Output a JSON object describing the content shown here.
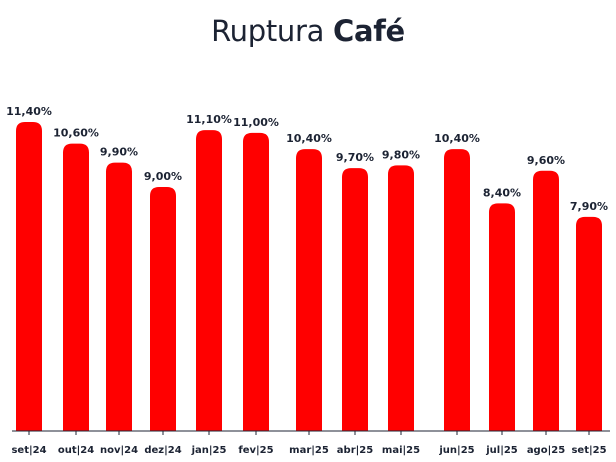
{
  "title": {
    "prefix": "Ruptura",
    "emphasis": "Café"
  },
  "colors": {
    "bar": "#ff0000",
    "text": "#1c2333",
    "axis": "#1c2333"
  },
  "chart_data": {
    "type": "bar",
    "title": "Ruptura Café",
    "xlabel": "",
    "ylabel": "",
    "ylim": [
      0,
      11.4
    ],
    "grid": false,
    "categories": [
      "set|24",
      "out|24",
      "nov|24",
      "dez|24",
      "jan|25",
      "fev|25",
      "mar|25",
      "abr|25",
      "mai|25",
      "jun|25",
      "jul|25",
      "ago|25",
      "set|25"
    ],
    "values": [
      11.4,
      10.6,
      9.9,
      9.0,
      11.1,
      11.0,
      10.4,
      9.7,
      9.8,
      10.4,
      8.4,
      9.6,
      7.9
    ],
    "value_labels": [
      "11,40%",
      "10,60%",
      "9,90%",
      "9,00%",
      "11,10%",
      "11,00%",
      "10,40%",
      "9,70%",
      "9,80%",
      "10,40%",
      "8,40%",
      "9,60%",
      "7,90%"
    ]
  }
}
